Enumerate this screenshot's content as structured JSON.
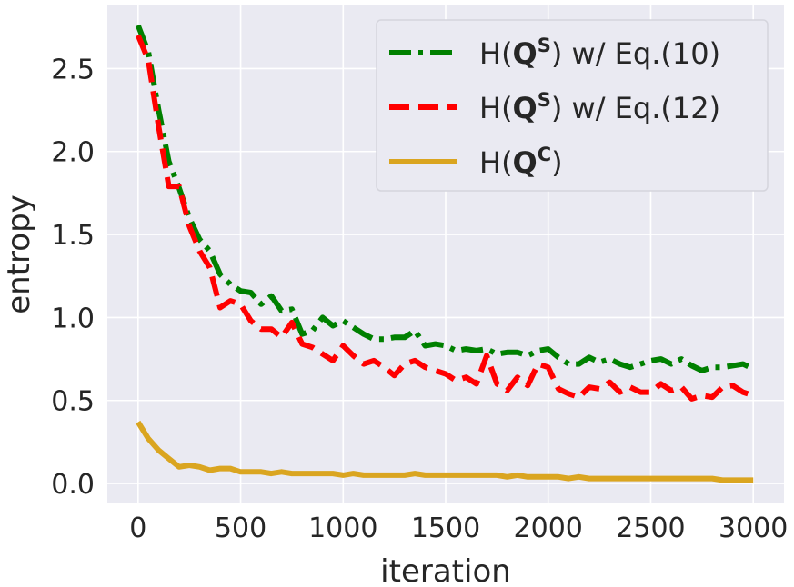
{
  "chart_data": {
    "type": "line",
    "xlabel": "iteration",
    "ylabel": "entropy",
    "xlim": [
      -150,
      3150
    ],
    "ylim": [
      -0.12,
      2.88
    ],
    "x_ticks": [
      0,
      500,
      1000,
      1500,
      2000,
      2500,
      3000
    ],
    "x_tick_labels": [
      "0",
      "500",
      "1000",
      "1500",
      "2000",
      "2500",
      "3000"
    ],
    "y_ticks": [
      0.0,
      0.5,
      1.0,
      1.5,
      2.0,
      2.5
    ],
    "y_tick_labels": [
      "0.0",
      "0.5",
      "1.0",
      "1.5",
      "2.0",
      "2.5"
    ],
    "grid": true,
    "legend_position": "top-right",
    "background": "#eaeaf2",
    "x": [
      0,
      50,
      100,
      150,
      200,
      250,
      300,
      350,
      400,
      450,
      500,
      550,
      600,
      650,
      700,
      750,
      800,
      850,
      900,
      950,
      1000,
      1050,
      1100,
      1150,
      1200,
      1250,
      1300,
      1350,
      1400,
      1450,
      1500,
      1550,
      1600,
      1650,
      1700,
      1750,
      1800,
      1850,
      1900,
      1950,
      2000,
      2050,
      2100,
      2150,
      2200,
      2250,
      2300,
      2350,
      2400,
      2450,
      2500,
      2550,
      2600,
      2650,
      2700,
      2750,
      2800,
      2850,
      2900,
      2950,
      3000
    ],
    "series": [
      {
        "label_prefix": "H(",
        "label_bold": "Q",
        "label_sup": "S",
        "label_suffix": ") w/ Eq.(10)",
        "color": "#008000",
        "dash": "24 8 5 8",
        "values": [
          2.76,
          2.6,
          2.25,
          1.94,
          1.78,
          1.6,
          1.47,
          1.4,
          1.26,
          1.2,
          1.16,
          1.15,
          1.08,
          1.13,
          1.04,
          1.05,
          0.9,
          0.92,
          1.0,
          0.95,
          0.98,
          0.94,
          0.9,
          0.87,
          0.87,
          0.88,
          0.88,
          0.92,
          0.83,
          0.84,
          0.83,
          0.8,
          0.81,
          0.8,
          0.81,
          0.78,
          0.79,
          0.79,
          0.77,
          0.8,
          0.81,
          0.76,
          0.72,
          0.72,
          0.76,
          0.73,
          0.75,
          0.72,
          0.7,
          0.72,
          0.74,
          0.75,
          0.72,
          0.75,
          0.71,
          0.68,
          0.7,
          0.7,
          0.71,
          0.72,
          0.69
        ]
      },
      {
        "label_prefix": "H(",
        "label_bold": "Q",
        "label_sup": "S",
        "label_suffix": ") w/ Eq.(12)",
        "color": "#ff0000",
        "dash": "22 10",
        "values": [
          2.7,
          2.55,
          2.15,
          1.79,
          1.79,
          1.55,
          1.4,
          1.3,
          1.06,
          1.1,
          1.08,
          0.98,
          0.93,
          0.93,
          0.88,
          0.97,
          0.84,
          0.82,
          0.78,
          0.74,
          0.83,
          0.77,
          0.72,
          0.74,
          0.7,
          0.65,
          0.72,
          0.74,
          0.7,
          0.68,
          0.66,
          0.62,
          0.64,
          0.6,
          0.77,
          0.6,
          0.56,
          0.64,
          0.59,
          0.72,
          0.7,
          0.57,
          0.54,
          0.52,
          0.58,
          0.57,
          0.61,
          0.55,
          0.58,
          0.55,
          0.55,
          0.6,
          0.56,
          0.58,
          0.51,
          0.53,
          0.52,
          0.58,
          0.59,
          0.55,
          0.53
        ]
      },
      {
        "label_prefix": "H(",
        "label_bold": "Q",
        "label_sup": "C",
        "label_suffix": ")",
        "color": "#daa520",
        "dash": "",
        "values": [
          0.37,
          0.27,
          0.2,
          0.15,
          0.1,
          0.11,
          0.1,
          0.08,
          0.09,
          0.09,
          0.07,
          0.07,
          0.07,
          0.06,
          0.07,
          0.06,
          0.06,
          0.06,
          0.06,
          0.06,
          0.05,
          0.06,
          0.05,
          0.05,
          0.05,
          0.05,
          0.05,
          0.06,
          0.05,
          0.05,
          0.05,
          0.05,
          0.05,
          0.05,
          0.05,
          0.05,
          0.04,
          0.05,
          0.04,
          0.04,
          0.04,
          0.04,
          0.03,
          0.04,
          0.03,
          0.03,
          0.03,
          0.03,
          0.03,
          0.03,
          0.03,
          0.03,
          0.03,
          0.03,
          0.03,
          0.03,
          0.03,
          0.02,
          0.02,
          0.02,
          0.02
        ]
      }
    ]
  }
}
